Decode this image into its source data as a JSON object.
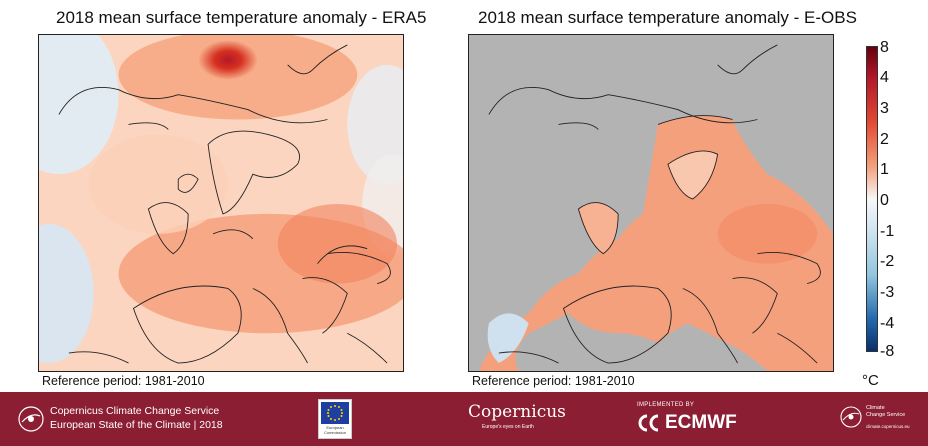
{
  "left_panel": {
    "title": "2018 mean surface temperature anomaly - ERA5",
    "reference": "Reference period: 1981-2010"
  },
  "right_panel": {
    "title": "2018 mean surface temperature anomaly - E-OBS",
    "reference": "Reference period: 1981-2010"
  },
  "colorbar": {
    "ticks": [
      "8",
      "4",
      "3",
      "2",
      "1",
      "0",
      "-1",
      "-2",
      "-3",
      "-4",
      "-8"
    ],
    "unit": "°C",
    "colors": [
      "#08306b",
      "#2166ac",
      "#4393c3",
      "#92c5de",
      "#d1e5f0",
      "#f7f7f7",
      "#fddbc7",
      "#f4a582",
      "#ef6a3f",
      "#d6301f",
      "#67000d"
    ]
  },
  "colors": {
    "footer": "#8c1e34",
    "missing_data": "#b3b3b3",
    "warm": "#f4a582",
    "cool": "#cfe1ef"
  },
  "footer": {
    "service_name": "Copernicus Climate Change Service",
    "report_name": "European State of the Climate | 2018",
    "ec_text": "European Commission",
    "copernicus_name": "Copernicus",
    "copernicus_tagline": "Europe's eyes on Earth",
    "implemented_by": "IMPLEMENTED BY",
    "ecmwf_name": "ECMWF",
    "c3s_line1": "Climate",
    "c3s_line2": "Change Service",
    "c3s_url": "climate.copernicus.eu"
  }
}
